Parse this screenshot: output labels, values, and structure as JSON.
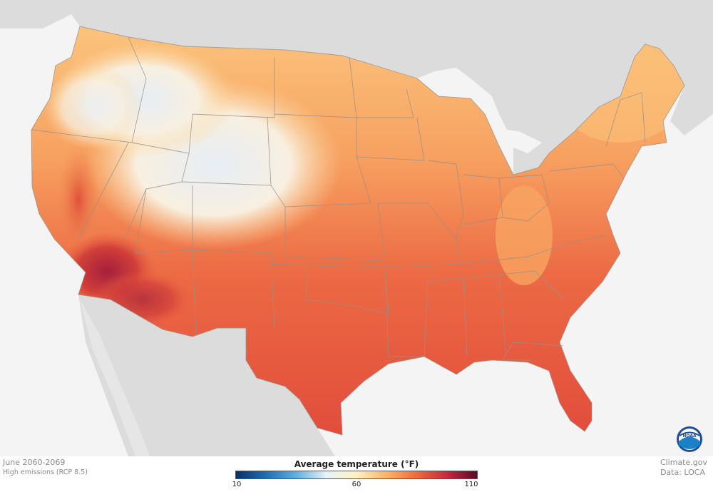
{
  "map": {
    "period": "June 2060-2069",
    "scenario": "High emissions (RCP 8.5)",
    "credit_source": "Climate.gov",
    "credit_data": "Data: LOCA",
    "logo_text": "NOAA",
    "logo_icon": "noaa-seal-icon",
    "colors": {
      "land_outside": "#dcdcdc",
      "water": "#f4f4f4",
      "hot_south": "#e2513a",
      "warm_mid": "#f3874c",
      "mild_north": "#fbc177",
      "cool_mountain": "#e8eef5",
      "hottest_desert": "#a51f3b",
      "state_border": "#9a8f88"
    }
  },
  "legend": {
    "title": "Average temperature (°F)",
    "min_label": "10",
    "mid_label": "60",
    "max_label": "110",
    "min": 10,
    "mid": 60,
    "max": 110,
    "stops": [
      "#08306b",
      "#1f6eb4",
      "#5fb0e0",
      "#e6f2f8",
      "#fff1c0",
      "#fcb26a",
      "#ee6a3e",
      "#c7283e",
      "#5a0a2a"
    ]
  }
}
